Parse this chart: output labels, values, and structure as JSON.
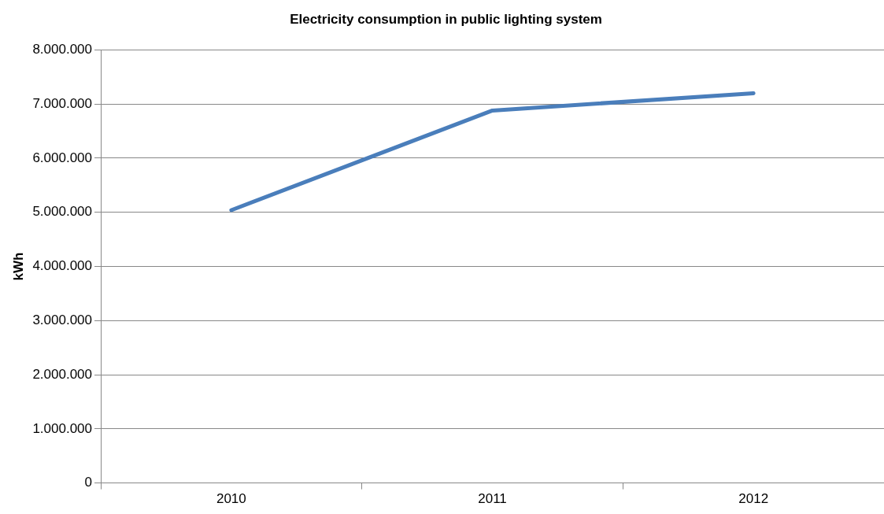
{
  "chart_data": {
    "type": "line",
    "title": "Electricity consumption in public lighting system",
    "ylabel": "kWh",
    "categories": [
      "2010",
      "2011",
      "2012"
    ],
    "series": [
      {
        "color": "#4a7ebb",
        "values": [
          5040000,
          6880000,
          7200000
        ]
      }
    ],
    "ylim": [
      0,
      8000000
    ],
    "yticks": [
      {
        "value": 0,
        "label": "0"
      },
      {
        "value": 1000000,
        "label": "1.000.000"
      },
      {
        "value": 2000000,
        "label": "2.000.000"
      },
      {
        "value": 3000000,
        "label": "3.000.000"
      },
      {
        "value": 4000000,
        "label": "4.000.000"
      },
      {
        "value": 5000000,
        "label": "5.000.000"
      },
      {
        "value": 6000000,
        "label": "6.000.000"
      },
      {
        "value": 7000000,
        "label": "7.000.000"
      },
      {
        "value": 8000000,
        "label": "8.000.000"
      }
    ],
    "grid": "y",
    "legend": false,
    "marker": "none",
    "line_style": "solid"
  }
}
